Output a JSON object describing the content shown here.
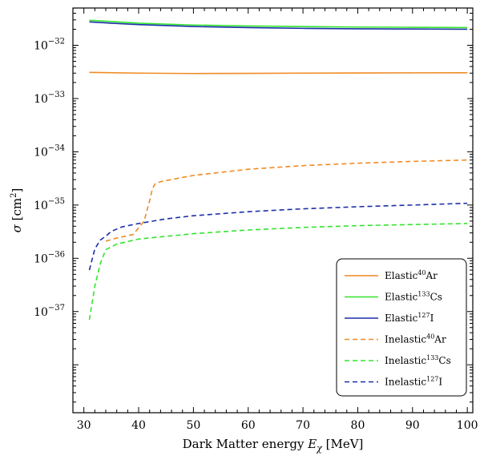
{
  "chart_data": {
    "type": "line",
    "xlabel": "Dark Matter energy",
    "xlabel_symbol": "E",
    "xlabel_subscript": "χ",
    "xlabel_unit": "[MeV]",
    "ylabel_symbol": "σ",
    "ylabel_unit_open": "[cm",
    "ylabel_unit_sup": "2",
    "ylabel_unit_close": "]",
    "xlim": [
      28,
      101
    ],
    "ylim_log10": [
      -38.9,
      -31.3
    ],
    "y_scale": "log",
    "x_ticks": [
      30,
      40,
      50,
      60,
      70,
      80,
      90,
      100
    ],
    "y_ticks": [
      {
        "exp": -32,
        "base": "10",
        "sup": "−32"
      },
      {
        "exp": -33,
        "base": "10",
        "sup": "−33"
      },
      {
        "exp": -34,
        "base": "10",
        "sup": "−34"
      },
      {
        "exp": -35,
        "base": "10",
        "sup": "−35"
      },
      {
        "exp": -36,
        "base": "10",
        "sup": "−36"
      },
      {
        "exp": -37,
        "base": "10",
        "sup": "−37"
      }
    ],
    "legend_position": "bottom-right",
    "series": [
      {
        "label_prefix": "Elastic",
        "label_sup": "40",
        "label_el": "Ar",
        "color": "#F08A24",
        "dash": "solid",
        "x": [
          31,
          40,
          50,
          60,
          70,
          80,
          90,
          100
        ],
        "y": [
          3.1e-33,
          3e-33,
          2.95e-33,
          2.97e-33,
          3e-33,
          3.02e-33,
          3.04e-33,
          3.05e-33
        ]
      },
      {
        "label_prefix": "Elastic",
        "label_sup": "133",
        "label_el": "Cs",
        "color": "#33E52E",
        "dash": "solid",
        "x": [
          31,
          35,
          40,
          50,
          60,
          70,
          80,
          90,
          100
        ],
        "y": [
          2.95e-32,
          2.8e-32,
          2.6e-32,
          2.4e-32,
          2.3e-32,
          2.25e-32,
          2.2e-32,
          2.18e-32,
          2.15e-32
        ]
      },
      {
        "label_prefix": "Elastic",
        "label_sup": "127",
        "label_el": "I",
        "color": "#1B2FA8",
        "dash": "solid",
        "x": [
          31,
          35,
          40,
          50,
          60,
          70,
          80,
          90,
          100
        ],
        "y": [
          2.75e-32,
          2.6e-32,
          2.45e-32,
          2.25e-32,
          2.15e-32,
          2.08e-32,
          2.04e-32,
          2.02e-32,
          2e-32
        ]
      },
      {
        "label_prefix": "Inelastic",
        "label_sup": "40",
        "label_el": "Ar",
        "color": "#F08A24",
        "dash": "dashed",
        "x": [
          34,
          36,
          39,
          41,
          42,
          42.5,
          43,
          44,
          50,
          60,
          70,
          80,
          90,
          100
        ],
        "y": [
          2.1e-36,
          2.4e-36,
          2.8e-36,
          5e-36,
          1.2e-35,
          2e-35,
          2.5e-35,
          2.75e-35,
          3.6e-35,
          4.7e-35,
          5.5e-35,
          6.1e-35,
          6.6e-35,
          7e-35
        ]
      },
      {
        "label_prefix": "Inelastic",
        "label_sup": "133",
        "label_el": "Cs",
        "color": "#33E52E",
        "dash": "dashed",
        "x": [
          31,
          32,
          33,
          34,
          36,
          40,
          50,
          60,
          70,
          80,
          90,
          100
        ],
        "y": [
          7e-38,
          3e-37,
          8e-37,
          1.45e-36,
          1.85e-36,
          2.3e-36,
          2.9e-36,
          3.4e-36,
          3.8e-36,
          4.1e-36,
          4.3e-36,
          4.5e-36
        ]
      },
      {
        "label_prefix": "Inelastic",
        "label_sup": "127",
        "label_el": "I",
        "color": "#1B2FA8",
        "dash": "dashed",
        "x": [
          31,
          32,
          33,
          34,
          35,
          37,
          40,
          45,
          50,
          60,
          70,
          80,
          90,
          100
        ],
        "y": [
          6e-37,
          1.5e-36,
          2.2e-36,
          2.6e-36,
          3.2e-36,
          3.9e-36,
          4.5e-36,
          5.5e-36,
          6.3e-36,
          7.5e-36,
          8.5e-36,
          9.3e-36,
          1e-35,
          1.08e-35
        ]
      }
    ]
  }
}
